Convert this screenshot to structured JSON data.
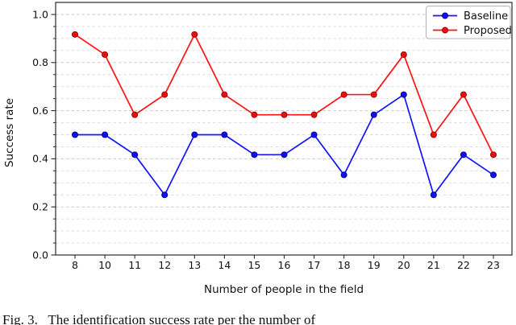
{
  "figure": {
    "caption": "Fig. 3.   The identification success rate per the number of"
  },
  "chart_data": {
    "type": "line",
    "title": "",
    "xlabel": "Number of people in the field",
    "ylabel": "Success rate",
    "categories": [
      "8",
      "10",
      "11",
      "12",
      "13",
      "14",
      "15",
      "16",
      "17",
      "18",
      "19",
      "20",
      "21",
      "22",
      "23"
    ],
    "series": [
      {
        "name": "Baseline",
        "color": "#1414ff",
        "marker_edge": "#0000a0",
        "values": [
          0.5,
          0.5,
          0.417,
          0.25,
          0.5,
          0.5,
          0.417,
          0.417,
          0.5,
          0.333,
          0.583,
          0.667,
          0.25,
          0.417,
          0.333
        ]
      },
      {
        "name": "Proposed",
        "color": "#ff1212",
        "marker_edge": "#a00000",
        "values": [
          0.917,
          0.833,
          0.583,
          0.667,
          0.917,
          0.667,
          0.583,
          0.583,
          0.583,
          0.667,
          0.667,
          0.833,
          0.5,
          0.667,
          0.417
        ]
      }
    ],
    "ylim": [
      0.0,
      1.0
    ],
    "yticks": {
      "values": [
        0.0,
        0.2,
        0.4,
        0.6,
        0.8,
        1.0
      ],
      "labels": [
        "0.0",
        "0.2",
        "0.4",
        "0.6",
        "0.8",
        "1.0"
      ]
    },
    "minor_grid_step": 0.05,
    "grid": true,
    "legend_position": "upper right",
    "colors": {
      "grid_minor": "#dadada",
      "grid_major": "#c9c9c9",
      "spine": "#2a2a2a",
      "legend_border": "#b3b3b3"
    }
  }
}
